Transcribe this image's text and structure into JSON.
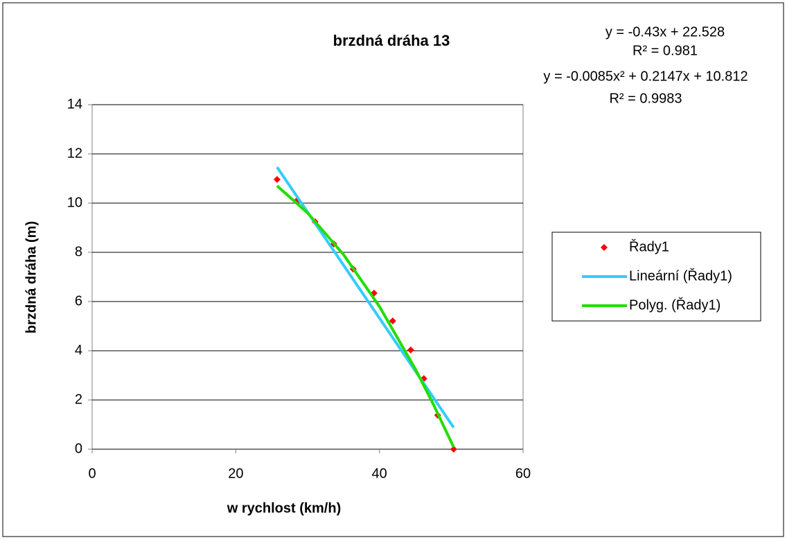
{
  "chart_data": {
    "type": "scatter",
    "title": "brzdná dráha  13",
    "xlabel": "w  rychlost   (km/h)",
    "ylabel": "brzdná dráha  (m)",
    "annotations": [
      "y = -0.43x + 22.528",
      "R² = 0.981",
      "y = -0.0085x² + 0.2147x + 10.812",
      "R² = 0.9983"
    ],
    "xlim": [
      0,
      60
    ],
    "xticks": [
      0,
      20,
      40,
      60
    ],
    "ylim": [
      0,
      14
    ],
    "yticks": [
      0,
      2,
      4,
      6,
      8,
      10,
      12,
      14
    ],
    "grid": true,
    "legend": "right",
    "series": [
      {
        "name": "Řady1",
        "color": "#ff0000",
        "mode": "markers",
        "x": [
          25.75,
          28.45,
          31.05,
          33.65,
          36.35,
          39.25,
          41.85,
          44.36,
          46.19,
          48.12,
          50.34
        ],
        "values": [
          10.96,
          10.08,
          9.24,
          8.34,
          7.32,
          6.34,
          5.21,
          4.03,
          2.87,
          1.38,
          0
        ]
      },
      {
        "name": "Lineární (Řady1)",
        "color": "#33ccff",
        "mode": "lines",
        "x": [
          25.75,
          50.34
        ],
        "values": [
          11.46,
          0.88
        ]
      },
      {
        "name": "Polyg. (Řady1)",
        "color": "#22dd00",
        "mode": "lines",
        "x": [
          25.75,
          30,
          35,
          40,
          45,
          47.5,
          50.34
        ],
        "values": [
          10.7,
          9.6,
          7.91,
          5.8,
          3.26,
          1.83,
          0.08
        ]
      }
    ]
  }
}
